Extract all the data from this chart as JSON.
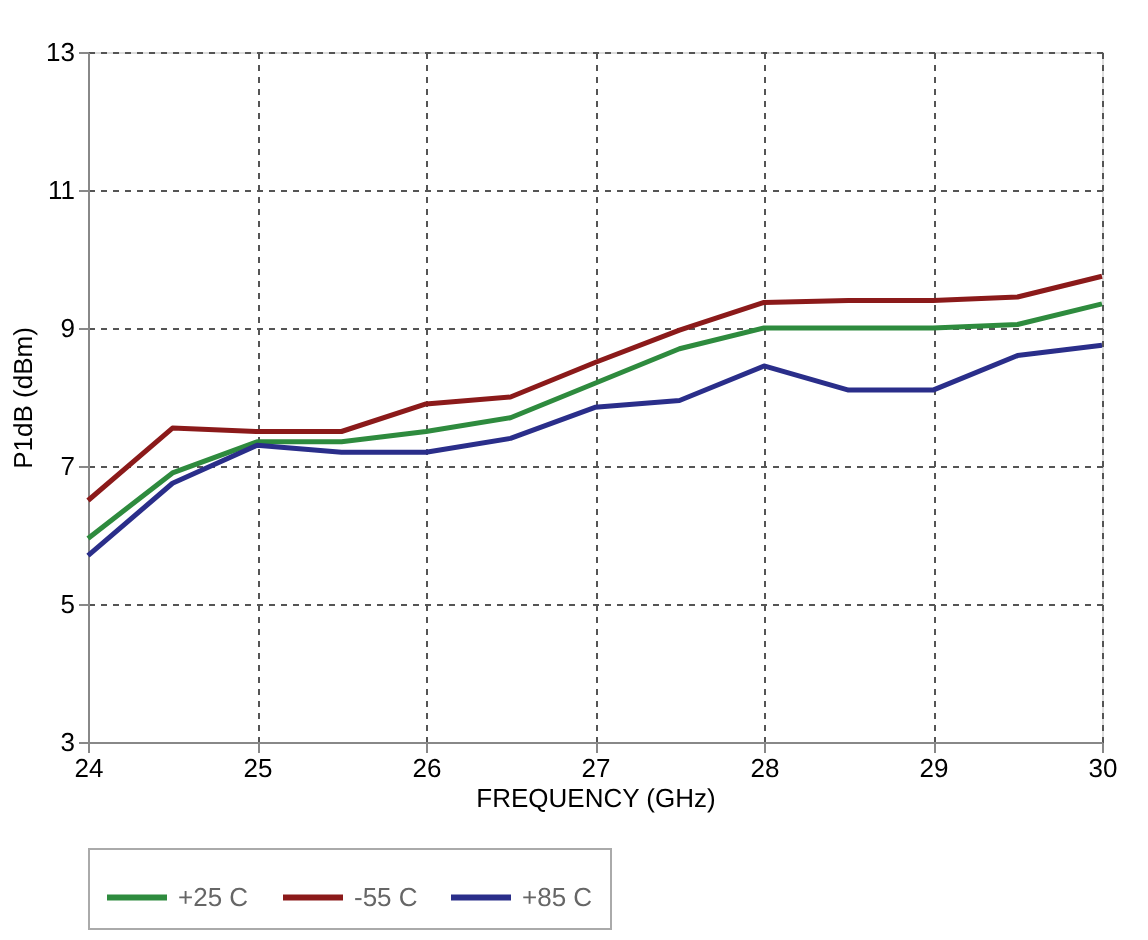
{
  "chart_data": {
    "type": "line",
    "xlabel": "FREQUENCY (GHz)",
    "ylabel": "P1dB (dBm)",
    "x": [
      24,
      24.5,
      25,
      25.5,
      26,
      26.5,
      27,
      27.5,
      28,
      28.5,
      29,
      29.5,
      30
    ],
    "series": [
      {
        "name": "+25 C",
        "color": "#2e8b3e",
        "values": [
          5.95,
          6.9,
          7.35,
          7.35,
          7.5,
          7.7,
          8.2,
          8.7,
          9.0,
          9.0,
          9.0,
          9.05,
          9.35
        ]
      },
      {
        "name": "-55 C",
        "color": "#8b1a1a",
        "values": [
          6.5,
          7.55,
          7.5,
          7.5,
          7.9,
          8.0,
          8.5,
          8.97,
          9.37,
          9.4,
          9.4,
          9.45,
          9.75
        ]
      },
      {
        "name": "+85 C",
        "color": "#2a2e8a",
        "values": [
          5.7,
          6.75,
          7.3,
          7.2,
          7.2,
          7.4,
          7.85,
          7.95,
          8.45,
          8.1,
          8.1,
          8.6,
          8.75
        ]
      }
    ],
    "xlim": [
      24,
      30
    ],
    "xticks": [
      24,
      25,
      26,
      27,
      28,
      29,
      30
    ],
    "ylim": [
      3,
      13
    ],
    "yticks": [
      3,
      5,
      7,
      9,
      11,
      13
    ],
    "grid": true,
    "legend": "bottom",
    "marker": "none",
    "line_style": "solid"
  }
}
